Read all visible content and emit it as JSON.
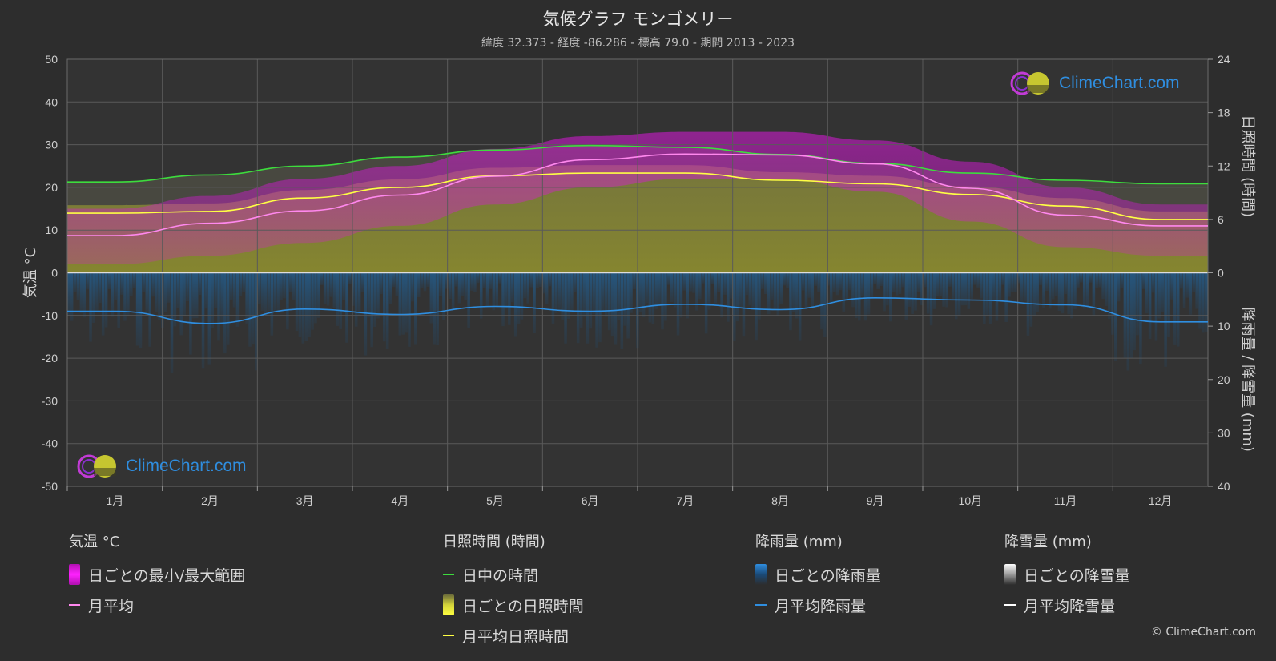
{
  "header": {
    "title": "気候グラフ モンゴメリー",
    "subtitle": "緯度 32.373 - 経度 -86.286 - 標高 79.0 - 期間 2013 - 2023"
  },
  "logo": {
    "text": "ClimeChart.com",
    "icon": "climechart-logo-icon"
  },
  "copyright": "© ClimeChart.com",
  "colors": {
    "background": "#2d2d2d",
    "plot_background": "#333333",
    "temp_range": "#e020e0",
    "temp_mean": "#ff88ee",
    "daylight": "#3ddc3d",
    "sunshine_fill": "#b5b530",
    "sunshine_mean": "#ffff44",
    "rain_fill": "#1f6aa8",
    "rain_mean": "#2f8ee0",
    "snow_mean": "#ffffff"
  },
  "legend": {
    "groups": [
      {
        "heading": "気温 °C",
        "items": [
          {
            "label": "日ごとの最小/最大範囲",
            "kind": "box",
            "color": "#e020e0"
          },
          {
            "label": "月平均",
            "kind": "line",
            "color": "#ff88ee"
          }
        ]
      },
      {
        "heading": "日照時間 (時間)",
        "items": [
          {
            "label": "日中の時間",
            "kind": "line",
            "color": "#3ddc3d"
          },
          {
            "label": "日ごとの日照時間",
            "kind": "box",
            "color": "#d4d43a"
          },
          {
            "label": "月平均日照時間",
            "kind": "line",
            "color": "#ffff44"
          }
        ]
      },
      {
        "heading": "降雨量 (mm)",
        "items": [
          {
            "label": "日ごとの降雨量",
            "kind": "box",
            "color": "#2f8ee0"
          },
          {
            "label": "月平均降雨量",
            "kind": "line",
            "color": "#2f8ee0"
          }
        ]
      },
      {
        "heading": "降雪量 (mm)",
        "items": [
          {
            "label": "日ごとの降雪量",
            "kind": "box",
            "color": "#dddddd"
          },
          {
            "label": "月平均降雪量",
            "kind": "line",
            "color": "#ffffff"
          }
        ]
      }
    ]
  },
  "chart_data": {
    "type": "line",
    "categories": [
      "1月",
      "2月",
      "3月",
      "4月",
      "5月",
      "6月",
      "7月",
      "8月",
      "9月",
      "10月",
      "11月",
      "12月"
    ],
    "y_left": {
      "label": "気温 °C",
      "ylim": [
        -50,
        50
      ],
      "ticks": [
        50,
        40,
        30,
        20,
        10,
        0,
        -10,
        -20,
        -30,
        -40,
        -50
      ]
    },
    "y_right_top": {
      "label": "日照時間 (時間)",
      "ylim": [
        0,
        24
      ],
      "ticks": [
        24,
        18,
        12,
        6,
        0
      ]
    },
    "y_right_bottom": {
      "label": "降雨量 / 降雪量 (mm)",
      "ylim": [
        0,
        40
      ],
      "ticks": [
        0,
        10,
        20,
        30,
        40
      ]
    },
    "grid": true,
    "series": [
      {
        "name": "日中の時間",
        "axis": "sun_hours",
        "values": [
          10.2,
          11.0,
          12.0,
          13.0,
          13.8,
          14.3,
          14.1,
          13.3,
          12.3,
          11.2,
          10.4,
          10.0
        ]
      },
      {
        "name": "月平均日照時間",
        "axis": "sun_hours",
        "values": [
          6.7,
          6.9,
          8.4,
          9.6,
          10.9,
          11.2,
          11.2,
          10.4,
          10.0,
          8.8,
          7.5,
          6.0
        ]
      },
      {
        "name": "月平均",
        "axis": "temp_c",
        "values": [
          8.7,
          11.6,
          14.5,
          18.2,
          22.6,
          26.5,
          27.8,
          27.6,
          25.5,
          19.8,
          13.5,
          11.0
        ]
      },
      {
        "name": "月平均降雨量",
        "axis": "rain_mm",
        "values": [
          7.2,
          9.5,
          6.8,
          7.8,
          6.3,
          7.2,
          5.9,
          6.9,
          4.7,
          5.1,
          6.0,
          9.2
        ]
      },
      {
        "name": "日ごとの最小/最大範囲 (min)",
        "axis": "temp_c",
        "values": [
          2,
          4,
          7,
          11,
          16,
          20,
          22,
          22,
          19,
          12,
          6,
          4
        ]
      },
      {
        "name": "日ごとの最小/最大範囲 (max)",
        "axis": "temp_c",
        "values": [
          15,
          18,
          22,
          25,
          29,
          32,
          33,
          33,
          31,
          26,
          20,
          16
        ]
      }
    ]
  }
}
